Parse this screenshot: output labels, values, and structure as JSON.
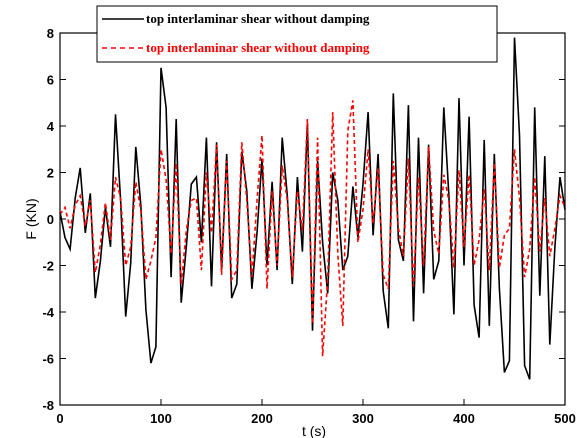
{
  "chart_data": {
    "type": "line",
    "title": "",
    "xlabel": "t (s)",
    "ylabel": "F (KN)",
    "xlim": [
      0,
      500
    ],
    "ylim": [
      -8,
      8
    ],
    "x_ticks": [
      0,
      100,
      200,
      300,
      400,
      500
    ],
    "y_ticks": [
      -8,
      -6,
      -4,
      -2,
      0,
      2,
      4,
      6,
      8
    ],
    "x_tick_labels": [
      "0",
      "100",
      "200",
      "300",
      "400",
      "500"
    ],
    "y_tick_labels": [
      "-8",
      "-6",
      "-4",
      "-2",
      "0",
      "2",
      "4",
      "6",
      "8"
    ],
    "grid": false,
    "legend_position": "top",
    "colors": {
      "series1": "#000000",
      "series2": "#ff0000"
    },
    "series": [
      {
        "name": "top interlaminar shear without damping",
        "style": "solid",
        "x": [
          0,
          5,
          10,
          15,
          20,
          25,
          30,
          35,
          40,
          45,
          50,
          55,
          60,
          65,
          70,
          75,
          80,
          85,
          90,
          95,
          100,
          105,
          110,
          115,
          120,
          125,
          130,
          135,
          140,
          145,
          150,
          155,
          160,
          165,
          170,
          175,
          180,
          185,
          190,
          195,
          200,
          205,
          210,
          215,
          220,
          225,
          230,
          235,
          240,
          245,
          250,
          255,
          260,
          265,
          270,
          275,
          280,
          285,
          290,
          295,
          300,
          305,
          310,
          315,
          320,
          325,
          330,
          335,
          340,
          345,
          350,
          355,
          360,
          365,
          370,
          375,
          380,
          385,
          390,
          395,
          400,
          405,
          410,
          415,
          420,
          425,
          430,
          435,
          440,
          445,
          450,
          455,
          460,
          465,
          470,
          475,
          480,
          485,
          490,
          495,
          500
        ],
        "values": [
          0.3,
          -0.8,
          -1.3,
          0.9,
          2.2,
          -0.6,
          1.1,
          -3.4,
          -1.8,
          0.5,
          -1.2,
          4.5,
          0.8,
          -4.2,
          -1.9,
          3.1,
          0.6,
          -3.9,
          -6.2,
          -5.5,
          6.5,
          4.8,
          -2.5,
          4.3,
          -3.6,
          -1.2,
          1.5,
          1.8,
          -1.0,
          3.5,
          -2.9,
          3.3,
          -2.2,
          2.8,
          -3.4,
          -2.8,
          2.9,
          1.2,
          -3.0,
          -0.6,
          2.6,
          -2.0,
          1.6,
          -2.2,
          3.5,
          1.0,
          -2.8,
          1.8,
          -1.4,
          4.1,
          -4.8,
          2.5,
          -1.0,
          -3.2,
          2.0,
          0.8,
          -2.2,
          -1.6,
          1.4,
          -0.8,
          1.5,
          4.6,
          -0.7,
          2.8,
          -3.1,
          -4.7,
          5.4,
          -0.9,
          -1.8,
          4.9,
          -4.4,
          3.5,
          -3.2,
          3.2,
          -2.6,
          -1.8,
          4.8,
          1.0,
          -4.1,
          5.2,
          -2.0,
          4.4,
          -3.7,
          -5.1,
          3.4,
          -4.6,
          2.8,
          -3.0,
          -6.6,
          -6.1,
          7.8,
          3.6,
          -6.3,
          -6.9,
          4.8,
          -3.3,
          2.7,
          -5.4,
          -1.2,
          1.8,
          0.4
        ]
      },
      {
        "name": "top interlaminar shear without damping",
        "style": "dashed",
        "x": [
          0,
          5,
          10,
          15,
          20,
          25,
          30,
          35,
          40,
          45,
          50,
          55,
          60,
          65,
          70,
          75,
          80,
          85,
          90,
          95,
          100,
          105,
          110,
          115,
          120,
          125,
          130,
          135,
          140,
          145,
          150,
          155,
          160,
          165,
          170,
          175,
          180,
          185,
          190,
          195,
          200,
          205,
          210,
          215,
          220,
          225,
          230,
          235,
          240,
          245,
          250,
          255,
          260,
          265,
          270,
          275,
          280,
          285,
          290,
          295,
          300,
          305,
          310,
          315,
          320,
          325,
          330,
          335,
          340,
          345,
          350,
          355,
          360,
          365,
          370,
          375,
          380,
          385,
          390,
          395,
          400,
          405,
          410,
          415,
          420,
          425,
          430,
          435,
          440,
          445,
          450,
          455,
          460,
          465,
          470,
          475,
          480,
          485,
          490,
          495,
          500
        ],
        "values": [
          0.2,
          0.5,
          -0.4,
          0.6,
          1.0,
          -0.3,
          0.8,
          -2.3,
          -1.1,
          0.7,
          -0.9,
          1.8,
          0.9,
          -2.0,
          -1.2,
          1.6,
          0.4,
          -2.6,
          -1.8,
          -0.8,
          3.0,
          1.7,
          -1.5,
          2.4,
          -2.8,
          -0.5,
          0.8,
          0.9,
          -2.2,
          2.0,
          -0.6,
          3.2,
          -2.4,
          2.5,
          -2.6,
          -2.2,
          3.3,
          0.8,
          -2.5,
          0.8,
          3.6,
          -3.0,
          1.2,
          -2.0,
          2.3,
          0.8,
          -2.5,
          1.2,
          -0.5,
          4.3,
          -4.5,
          3.5,
          -5.9,
          -2.6,
          4.6,
          -1.5,
          -4.6,
          3.8,
          5.1,
          -1.0,
          0.4,
          3.0,
          -0.2,
          2.2,
          -2.4,
          -3.0,
          2.5,
          -0.4,
          -1.6,
          2.6,
          -2.9,
          1.8,
          -2.0,
          3.1,
          -0.5,
          -1.5,
          1.9,
          0.8,
          -2.1,
          2.1,
          -1.2,
          1.9,
          -2.0,
          -0.9,
          1.3,
          -2.2,
          2.4,
          -2.1,
          -0.7,
          -0.4,
          3.0,
          0.9,
          -2.5,
          -1.3,
          1.8,
          -1.4,
          0.9,
          -1.6,
          -0.4,
          1.0,
          0.5
        ]
      }
    ]
  }
}
